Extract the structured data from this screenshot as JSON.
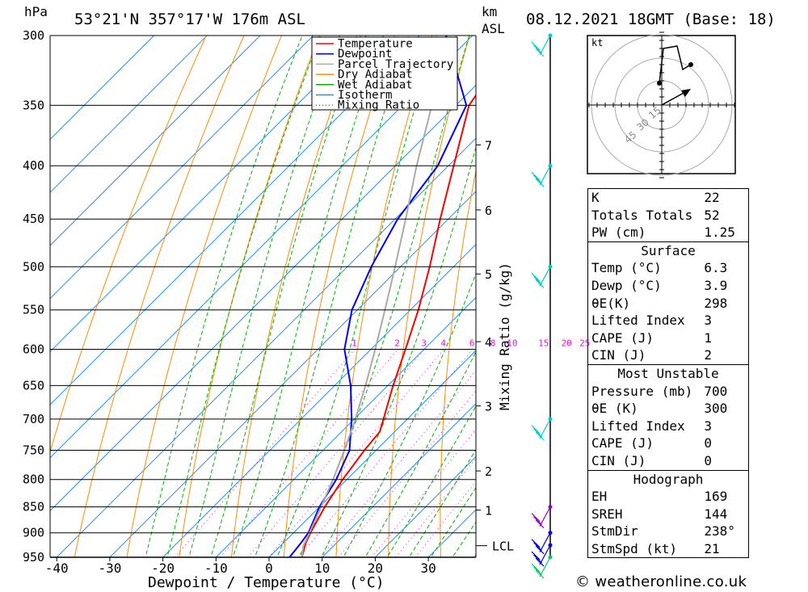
{
  "header": {
    "pressure_unit": "hPa",
    "location": "53°21'N  357°17'W  176m  ASL",
    "km_label": "km",
    "asl_label": "ASL",
    "datetime": "08.12.2021  18GMT  (Base: 18)"
  },
  "chart_data": {
    "type": "line",
    "title": "Skew-T log-P diagram",
    "xlabel": "Dewpoint / Temperature (°C)",
    "ylabel": "hPa",
    "mixing_ratio_label": "Mixing Ratio (g/kg)",
    "pressure_levels": [
      300,
      350,
      400,
      450,
      500,
      550,
      600,
      650,
      700,
      750,
      800,
      850,
      900,
      950
    ],
    "pressure_tick_labels": [
      "300",
      "350",
      "400",
      "450",
      "500",
      "550",
      "600",
      "650",
      "700",
      "750",
      "800",
      "850",
      "900",
      "950"
    ],
    "temperature_ticks": [
      -40,
      -30,
      -20,
      -10,
      0,
      10,
      20,
      30
    ],
    "temperature_tick_labels": [
      "-40",
      "-30",
      "-20",
      "-10",
      "0",
      "10",
      "20",
      "30"
    ],
    "km_levels": [
      {
        "label": "7",
        "p": 382
      },
      {
        "label": "6",
        "p": 441
      },
      {
        "label": "5",
        "p": 508
      },
      {
        "label": "4",
        "p": 590
      },
      {
        "label": "3",
        "p": 680
      },
      {
        "label": "2",
        "p": 785
      },
      {
        "label": "1",
        "p": 856
      }
    ],
    "lcl": {
      "label": "LCL",
      "p": 926
    },
    "mixing_ratios": [
      1,
      2,
      3,
      4,
      6,
      8,
      10,
      15,
      20,
      25
    ],
    "mixing_ratio_labels": [
      "1",
      "2",
      "3",
      "4",
      "6",
      "8",
      "10",
      "15",
      "20",
      "25"
    ],
    "legend": [
      {
        "name": "Temperature",
        "color": "#ff0000",
        "style": "solid"
      },
      {
        "name": "Dewpoint",
        "color": "#0000ff",
        "style": "solid"
      },
      {
        "name": "Parcel Trajectory",
        "color": "#aaaaaa",
        "style": "solid"
      },
      {
        "name": "Dry Adiabat",
        "color": "#ff8c00",
        "style": "solid"
      },
      {
        "name": "Wet Adiabat",
        "color": "#00b400",
        "style": "solid"
      },
      {
        "name": "Isotherm",
        "color": "#1e90ff",
        "style": "solid"
      },
      {
        "name": "Mixing Ratio",
        "color": "#ff00ff",
        "style": "dotted"
      }
    ],
    "series": [
      {
        "name": "Temperature",
        "points": [
          [
            952,
            6.3
          ],
          [
            920,
            4.2
          ],
          [
            900,
            3.2
          ],
          [
            850,
            1.0
          ],
          [
            800,
            -0.8
          ],
          [
            750,
            -2.2
          ],
          [
            720,
            -2.8
          ],
          [
            700,
            -4.5
          ],
          [
            650,
            -9.0
          ],
          [
            600,
            -13.5
          ],
          [
            550,
            -18.5
          ],
          [
            500,
            -24.5
          ],
          [
            450,
            -31.5
          ],
          [
            400,
            -39.0
          ],
          [
            350,
            -47.5
          ],
          [
            300,
            -51.5
          ]
        ]
      },
      {
        "name": "Dewpoint",
        "points": [
          [
            952,
            3.9
          ],
          [
            920,
            3.3
          ],
          [
            900,
            2.8
          ],
          [
            850,
            0.0
          ],
          [
            800,
            -2.0
          ],
          [
            750,
            -5.0
          ],
          [
            700,
            -10.5
          ],
          [
            650,
            -17.0
          ],
          [
            600,
            -25.0
          ],
          [
            550,
            -31.0
          ],
          [
            500,
            -35.5
          ],
          [
            450,
            -39.5
          ],
          [
            400,
            -42.0
          ],
          [
            350,
            -48.0
          ],
          [
            300,
            -65.0
          ]
        ]
      },
      {
        "name": "Parcel Trajectory",
        "points": [
          [
            952,
            6.3
          ],
          [
            926,
            4.3
          ],
          [
            900,
            3.0
          ],
          [
            850,
            0.3
          ],
          [
            800,
            -2.6
          ],
          [
            750,
            -6.0
          ],
          [
            700,
            -9.8
          ],
          [
            650,
            -14.2
          ],
          [
            600,
            -19.2
          ],
          [
            550,
            -24.8
          ],
          [
            500,
            -31.0
          ],
          [
            450,
            -38.0
          ],
          [
            400,
            -46.0
          ],
          [
            350,
            -54.5
          ],
          [
            300,
            -63.0
          ]
        ]
      }
    ],
    "wind_barbs": [
      {
        "p": 300,
        "color": "#00cccc"
      },
      {
        "p": 400,
        "color": "#00cccc"
      },
      {
        "p": 500,
        "color": "#00cccc"
      },
      {
        "p": 700,
        "color": "#00cccc"
      },
      {
        "p": 850,
        "color": "#9900cc"
      },
      {
        "p": 900,
        "color": "#0000ff"
      },
      {
        "p": 925,
        "color": "#0000ff"
      },
      {
        "p": 950,
        "color": "#00cc66"
      }
    ]
  },
  "hodograph": {
    "unit_label": "kt",
    "ring_labels": [
      "15",
      "30",
      "45"
    ]
  },
  "stats": {
    "top": [
      {
        "label": "K",
        "value": "22"
      },
      {
        "label": "Totals Totals",
        "value": "52"
      },
      {
        "label": "PW (cm)",
        "value": "1.25"
      }
    ],
    "surface_title": "Surface",
    "surface": [
      {
        "label": "Temp (°C)",
        "value": "6.3"
      },
      {
        "label": "Dewp (°C)",
        "value": "3.9"
      },
      {
        "label": "θE(K)",
        "value": "298"
      },
      {
        "label": "Lifted Index",
        "value": "3"
      },
      {
        "label": "CAPE (J)",
        "value": "1"
      },
      {
        "label": "CIN (J)",
        "value": "2"
      }
    ],
    "mu_title": "Most Unstable",
    "mu": [
      {
        "label": "Pressure (mb)",
        "value": "700"
      },
      {
        "label": "θE (K)",
        "value": "300"
      },
      {
        "label": "Lifted Index",
        "value": "3"
      },
      {
        "label": "CAPE (J)",
        "value": "0"
      },
      {
        "label": "CIN (J)",
        "value": "0"
      }
    ],
    "hodo_title": "Hodograph",
    "hodo": [
      {
        "label": "EH",
        "value": "169"
      },
      {
        "label": "SREH",
        "value": "144"
      },
      {
        "label": "StmDir",
        "value": "238°"
      },
      {
        "label": "StmSpd (kt)",
        "value": "21"
      }
    ]
  },
  "footer": {
    "credit": "© weatheronline.co.uk"
  }
}
